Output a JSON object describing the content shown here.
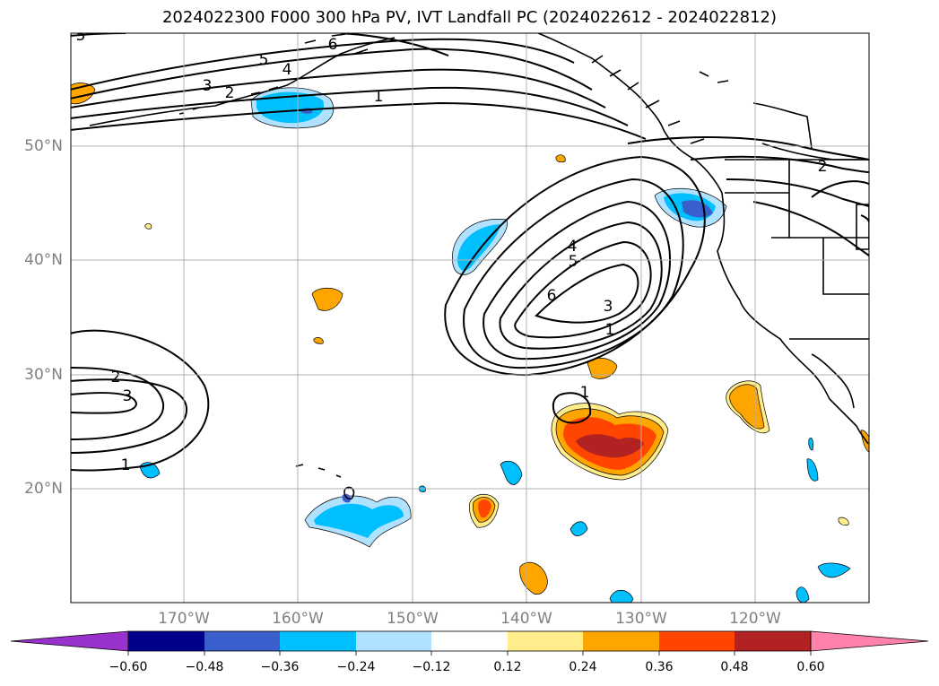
{
  "title": "2024022300 F000 300 hPa PV, IVT Landfall PC (2024022612 - 2024022812)",
  "lat_labels": [
    "50°N",
    "40°N",
    "30°N",
    "20°N"
  ],
  "lon_labels": [
    "170°W",
    "160°W",
    "150°W",
    "140°W",
    "130°W",
    "120°W"
  ],
  "contour_labels": [
    "5",
    "6",
    "5",
    "4",
    "3",
    "2",
    "1",
    "2",
    "4",
    "5",
    "6",
    "3",
    "1",
    "1",
    "2",
    "3",
    "1"
  ],
  "colorbar": {
    "ticks": [
      "−0.60",
      "−0.48",
      "−0.36",
      "−0.24",
      "−0.12",
      "0.12",
      "0.24",
      "0.36",
      "0.48",
      "0.60"
    ],
    "colors": [
      "#9932cc",
      "#00008b",
      "#3a5fcd",
      "#00bfff",
      "#b0e2ff",
      "#ffffff",
      "#ffec8b",
      "#ffa500",
      "#ff4500",
      "#b22222",
      "#ff82ab"
    ]
  },
  "colors": {
    "pv_pos_1": "#ffec8b",
    "pv_pos_2": "#ffa500",
    "pv_pos_3": "#ff4500",
    "pv_pos_4": "#b22222",
    "pv_neg_1": "#b0e2ff",
    "pv_neg_2": "#00bfff",
    "pv_neg_3": "#3a5fcd",
    "grid": "#b0b0b0"
  }
}
